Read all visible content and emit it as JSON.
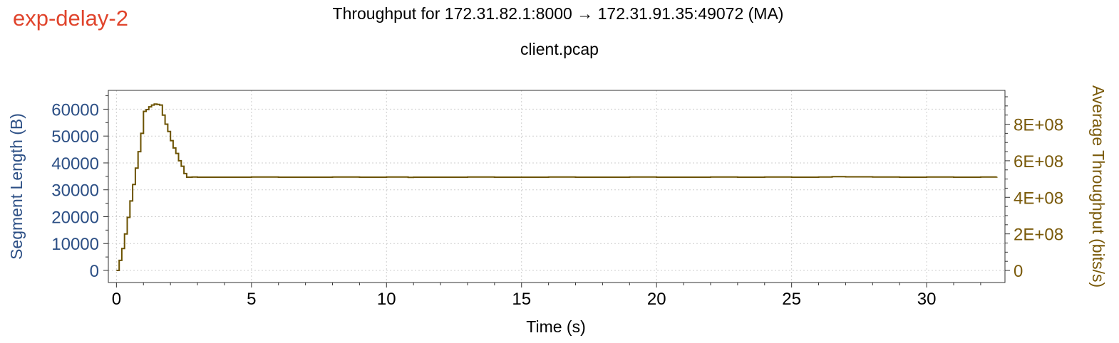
{
  "window": {
    "tag": "exp-delay-2",
    "title": "Throughput for 172.31.82.1:8000 → 172.31.91.35:49072 (MA)",
    "subtitle": "client.pcap"
  },
  "colors": {
    "tag": "#e0442c",
    "left_axis": "#2c4f85",
    "right_axis": "#7a5a0a",
    "series": "#6b5200",
    "grid": "#cfcfcf"
  },
  "chart_data": {
    "type": "line",
    "title": "Throughput for 172.31.82.1:8000 → 172.31.91.35:49072 (MA)",
    "subtitle": "client.pcap",
    "xlabel": "Time (s)",
    "ylabel_left": "Segment Length (B)",
    "ylabel_right": "Average Throughput (bits/s)",
    "xlim": [
      -0.3,
      32.9
    ],
    "ylim_left": [
      -4500,
      67000
    ],
    "ylim_right": [
      -66000000,
      985000000
    ],
    "x_ticks": [
      0,
      5,
      10,
      15,
      20,
      25,
      30
    ],
    "x_tick_labels": [
      "0",
      "5",
      "10",
      "15",
      "20",
      "25",
      "30"
    ],
    "y_left_ticks": [
      0,
      10000,
      20000,
      30000,
      40000,
      50000,
      60000
    ],
    "y_left_tick_labels": [
      "0",
      "10000",
      "20000",
      "30000",
      "40000",
      "50000",
      "60000"
    ],
    "y_right_ticks": [
      0,
      200000000,
      400000000,
      600000000,
      800000000
    ],
    "y_right_tick_labels": [
      "0",
      "2E+08",
      "4E+08",
      "6E+08",
      "8E+08"
    ],
    "grid": true,
    "legend": "none",
    "series": [
      {
        "axis": "right",
        "x": [
          0.0,
          0.1,
          0.2,
          0.3,
          0.4,
          0.5,
          0.6,
          0.7,
          0.8,
          0.9,
          1.0,
          1.1,
          1.2,
          1.3,
          1.4,
          1.5,
          1.6,
          1.7,
          1.8,
          1.9,
          2.0,
          2.1,
          2.2,
          2.3,
          2.4,
          2.5,
          2.6,
          2.8,
          3.0,
          4.0,
          5.0,
          6.0,
          7.0,
          8.0,
          9.0,
          10.0,
          10.8,
          11.0,
          12.0,
          13.0,
          14.0,
          15.0,
          16.0,
          17.0,
          18.0,
          19.0,
          20.0,
          21.0,
          22.0,
          23.0,
          24.0,
          25.0,
          26.0,
          26.5,
          27.0,
          28.0,
          29.0,
          30.0,
          31.0,
          32.0,
          32.6
        ],
        "values": [
          0,
          55000000,
          120000000,
          200000000,
          290000000,
          380000000,
          470000000,
          560000000,
          650000000,
          750000000,
          870000000,
          880000000,
          895000000,
          905000000,
          910000000,
          908000000,
          905000000,
          850000000,
          800000000,
          760000000,
          710000000,
          670000000,
          640000000,
          600000000,
          570000000,
          530000000,
          510000000,
          511000000,
          510000000,
          510000000,
          511000000,
          510000000,
          510000000,
          511000000,
          510000000,
          511000000,
          509000000,
          510000000,
          510000000,
          511000000,
          510000000,
          510000000,
          511000000,
          510000000,
          510000000,
          511000000,
          510000000,
          510000000,
          511000000,
          510000000,
          511000000,
          510000000,
          511000000,
          513000000,
          512000000,
          511000000,
          510000000,
          511000000,
          510000000,
          511000000,
          512000000
        ]
      }
    ]
  }
}
